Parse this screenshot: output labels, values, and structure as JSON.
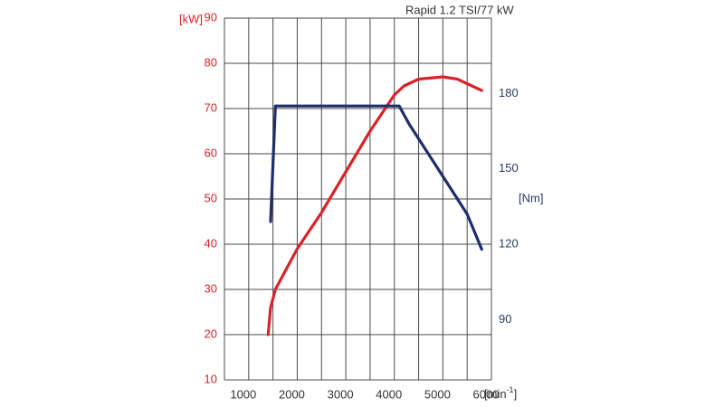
{
  "chart_data": {
    "type": "line",
    "title": "Rapid 1.2 TSI/77 kW",
    "x_unit_label": "[min",
    "x_unit_sup": "-1",
    "x_unit_close": "]",
    "left_axis": {
      "unit_label": "[kW]",
      "ticks": [
        "10",
        "20",
        "30",
        "40",
        "50",
        "60",
        "70",
        "80",
        "90"
      ],
      "range": [
        10,
        90
      ],
      "color": "#d8232a"
    },
    "right_axis": {
      "unit_label": "[Nm]",
      "ticks": [
        "90",
        "120",
        "150",
        "180"
      ],
      "range": [
        66,
        210
      ],
      "color": "#1f2d6b"
    },
    "x_axis": {
      "ticks": [
        "1000",
        "2000",
        "3000",
        "4000",
        "5000",
        "6000"
      ],
      "range": [
        500,
        6000
      ]
    },
    "grid": true,
    "series": [
      {
        "axis": "left",
        "color": "#d8232a",
        "points": [
          [
            1400,
            20
          ],
          [
            1450,
            26
          ],
          [
            1550,
            30
          ],
          [
            2000,
            39
          ],
          [
            2500,
            47
          ],
          [
            3000,
            56
          ],
          [
            3500,
            65
          ],
          [
            4000,
            73
          ],
          [
            4200,
            75
          ],
          [
            4500,
            76.5
          ],
          [
            5000,
            77
          ],
          [
            5300,
            76.5
          ],
          [
            5600,
            75
          ],
          [
            5800,
            74
          ]
        ]
      },
      {
        "axis": "right",
        "color": "#1f2d6b",
        "points": [
          [
            1450,
            129
          ],
          [
            1550,
            175
          ],
          [
            4100,
            175
          ],
          [
            4300,
            168
          ],
          [
            5000,
            147
          ],
          [
            5500,
            132
          ],
          [
            5800,
            118
          ]
        ]
      }
    ]
  }
}
